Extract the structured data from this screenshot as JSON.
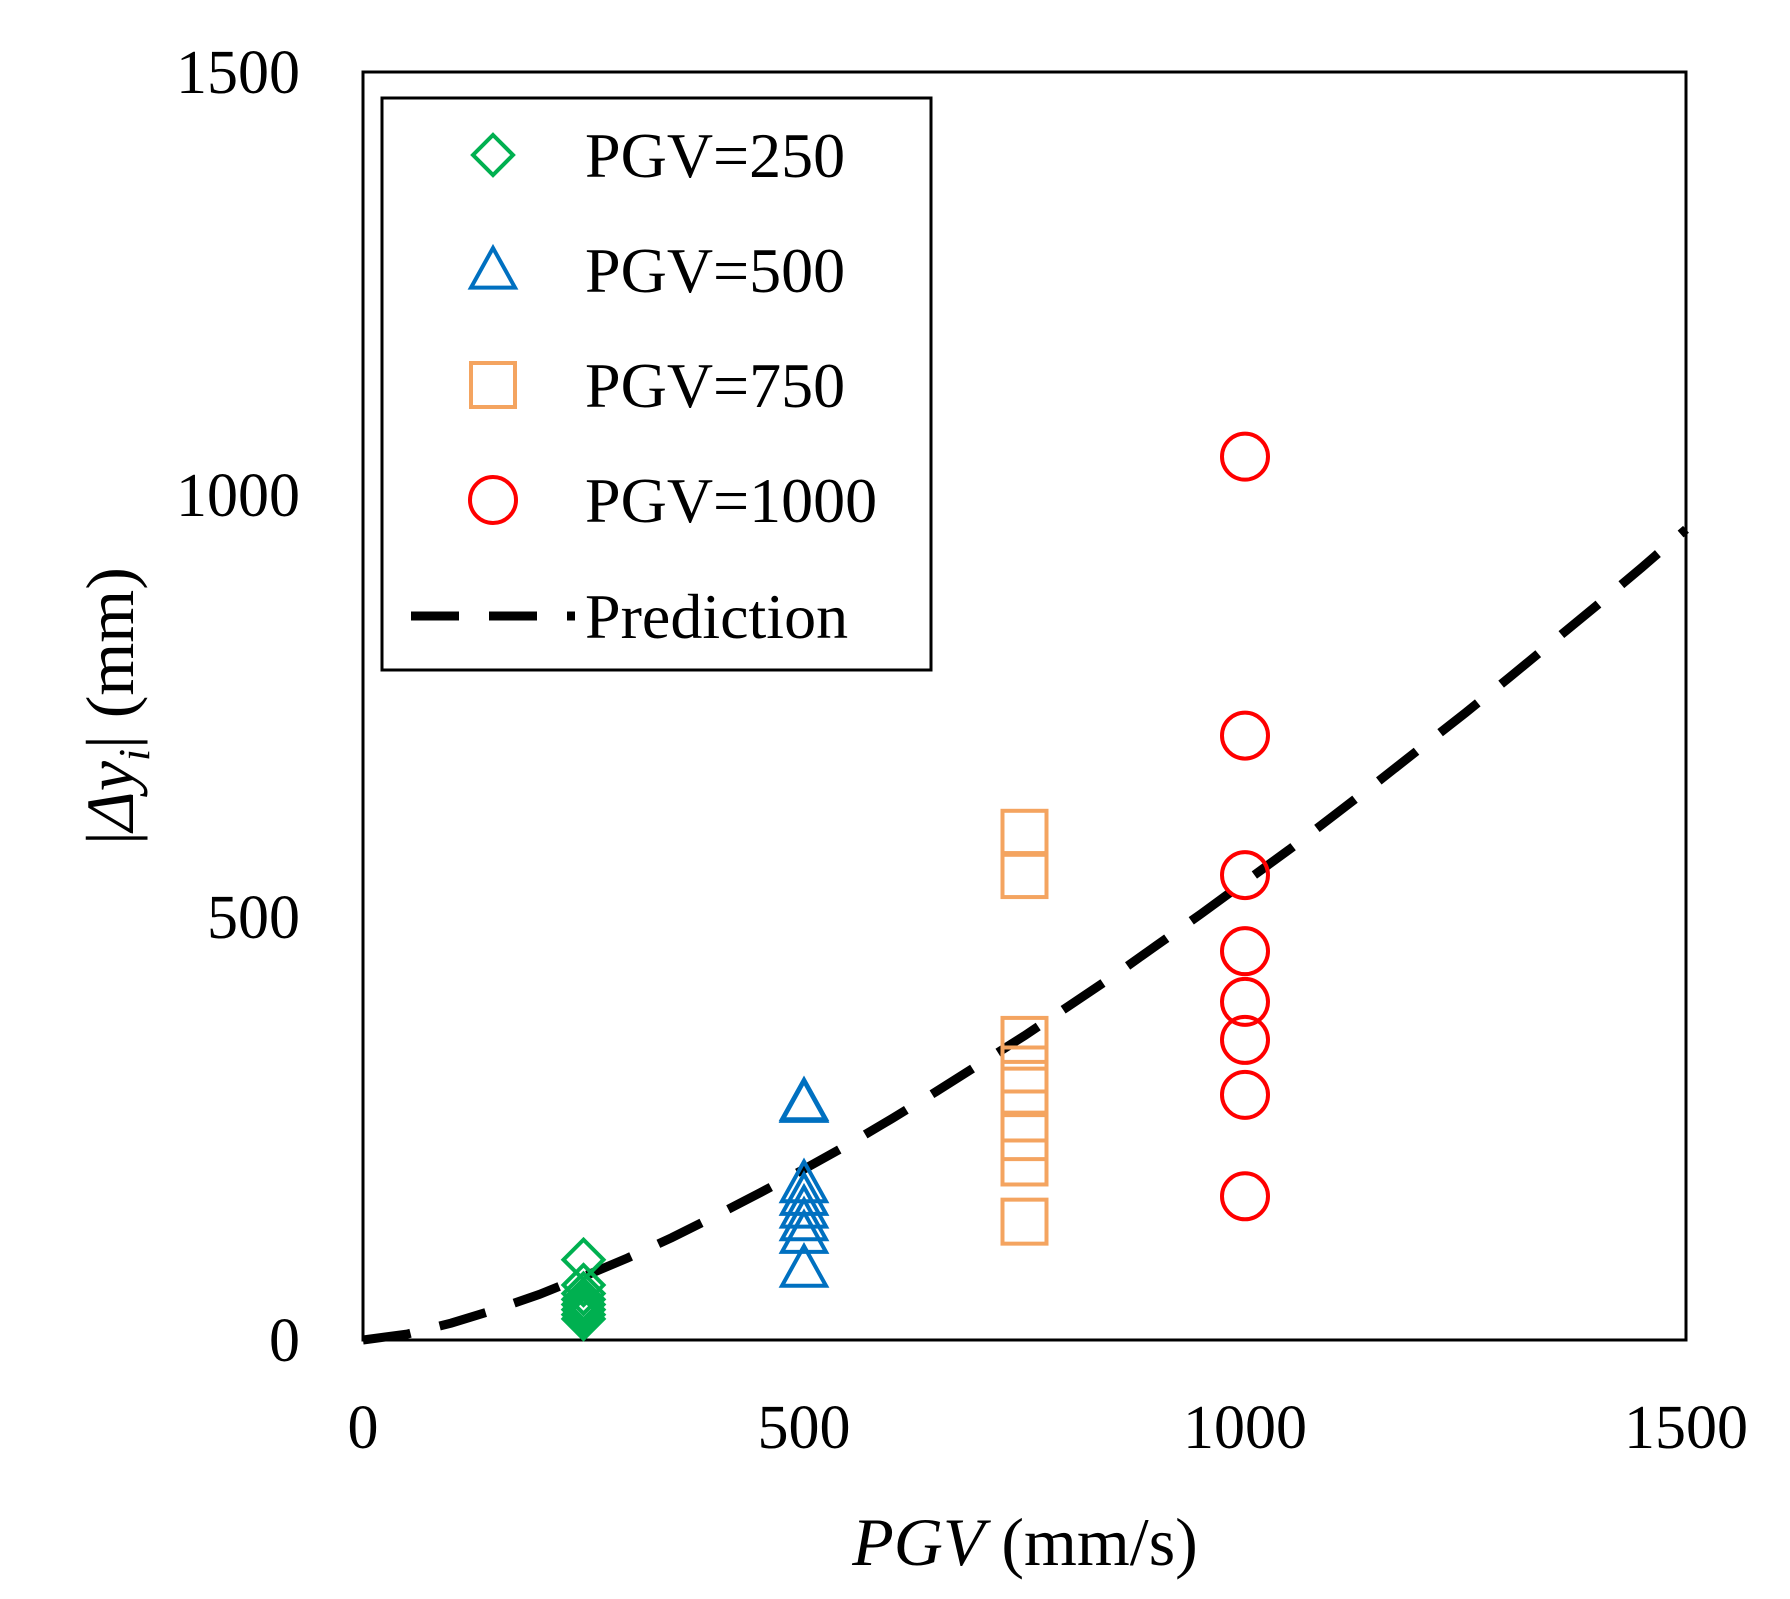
{
  "chart_data": {
    "type": "scatter",
    "title": "",
    "xlabel": {
      "italic": "PGV",
      "units": " (mm/s)"
    },
    "ylabel": {
      "delta": "Δ",
      "var": "y",
      "sub": "i",
      "units": " (mm)"
    },
    "xlim": [
      0,
      1500
    ],
    "ylim": [
      0,
      1500
    ],
    "x_ticks": [
      0,
      500,
      1000,
      1500
    ],
    "y_ticks": [
      0,
      500,
      1000,
      1500
    ],
    "x_tick_labels": [
      "0",
      "500",
      "1000",
      "1500"
    ],
    "y_tick_labels": [
      "0",
      "500",
      "1000",
      "1500"
    ],
    "grid": false,
    "legend_position": "top-left",
    "series": [
      {
        "name": "PGV=250",
        "marker": "diamond",
        "color": "#00B050",
        "points": [
          [
            250,
            95
          ],
          [
            250,
            65
          ],
          [
            250,
            55
          ],
          [
            250,
            48
          ],
          [
            250,
            42
          ],
          [
            250,
            36
          ],
          [
            250,
            30
          ],
          [
            250,
            25
          ]
        ]
      },
      {
        "name": "PGV=500",
        "marker": "triangle",
        "color": "#0070C0",
        "points": [
          [
            500,
            282
          ],
          [
            500,
            280
          ],
          [
            500,
            185
          ],
          [
            500,
            170
          ],
          [
            500,
            155
          ],
          [
            500,
            140
          ],
          [
            500,
            125
          ],
          [
            500,
            85
          ]
        ]
      },
      {
        "name": "PGV=750",
        "marker": "square",
        "color": "#F4A460",
        "points": [
          [
            750,
            600
          ],
          [
            750,
            550
          ],
          [
            750,
            355
          ],
          [
            750,
            320
          ],
          [
            750,
            295
          ],
          [
            750,
            240
          ],
          [
            750,
            210
          ],
          [
            750,
            140
          ]
        ]
      },
      {
        "name": "PGV=1000",
        "marker": "circle",
        "color": "#FF0000",
        "points": [
          [
            1000,
            1045
          ],
          [
            1000,
            715
          ],
          [
            1000,
            550
          ],
          [
            1000,
            460
          ],
          [
            1000,
            400
          ],
          [
            1000,
            355
          ],
          [
            1000,
            290
          ],
          [
            1000,
            170
          ]
        ]
      }
    ],
    "prediction": {
      "name": "Prediction",
      "style": "dashed",
      "color": "#000000",
      "x": [
        0,
        50,
        100,
        150,
        200,
        250,
        300,
        350,
        400,
        450,
        500,
        550,
        600,
        650,
        700,
        750,
        800,
        850,
        900,
        950,
        1000,
        1050,
        1100,
        1150,
        1200,
        1250,
        1300,
        1350,
        1400,
        1450,
        1500
      ],
      "y": [
        0,
        7,
        20,
        36,
        54,
        75,
        97,
        121,
        147,
        174,
        202,
        231,
        262,
        294,
        327,
        360,
        395,
        430,
        467,
        504,
        542,
        580,
        620,
        660,
        701,
        742,
        784,
        827,
        870,
        914,
        959
      ]
    }
  }
}
